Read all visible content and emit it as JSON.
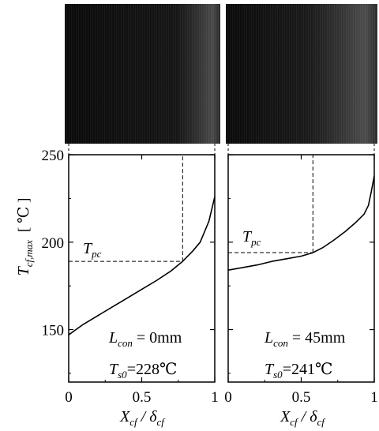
{
  "chart_data": [
    {
      "type": "line",
      "y_axis_symbol": "T",
      "y_axis_subscript": "cf,max",
      "y_axis_unit": "[ ℃ ]",
      "x_axis_symbol": "X",
      "x_axis_subscript": "cf",
      "x_axis_slash": " / δ",
      "x_axis_denominator_subscript": "cf",
      "xlim": [
        0,
        1
      ],
      "ylim": [
        120,
        250
      ],
      "x_ticks": [
        "0",
        "0.5",
        "1"
      ],
      "y_ticks": [
        "150",
        "200",
        "250"
      ],
      "series": [
        {
          "x": [
            0,
            0.05,
            0.1,
            0.2,
            0.3,
            0.4,
            0.5,
            0.6,
            0.7,
            0.78,
            0.85,
            0.9,
            0.93,
            0.96,
            0.98,
            1.0
          ],
          "y": [
            147,
            150,
            153,
            158,
            163,
            168,
            173,
            178,
            183.5,
            189,
            195,
            200,
            206,
            212,
            219,
            226
          ]
        }
      ],
      "marker_label_symbol": "T",
      "marker_label_subscript": "pc",
      "marker": {
        "x": 0.78,
        "y": 189
      },
      "annotations": [
        {
          "symbol": "L",
          "subscript": "con",
          "rest": " = 0mm"
        },
        {
          "symbol": "T",
          "subscript": "s0",
          "rest": "=228℃"
        }
      ]
    },
    {
      "type": "line",
      "x_axis_symbol": "X",
      "x_axis_subscript": "cf",
      "x_axis_slash": " / δ",
      "x_axis_denominator_subscript": "cf",
      "xlim": [
        0,
        1
      ],
      "ylim": [
        120,
        250
      ],
      "x_ticks": [
        "0",
        "0.5",
        "1"
      ],
      "series": [
        {
          "x": [
            0,
            0.1,
            0.2,
            0.3,
            0.4,
            0.5,
            0.58,
            0.65,
            0.72,
            0.8,
            0.87,
            0.93,
            0.96,
            0.98,
            1.0
          ],
          "y": [
            184,
            185.5,
            187,
            189,
            190.5,
            192,
            194,
            197,
            201,
            206,
            211,
            216,
            221,
            229,
            238
          ]
        }
      ],
      "marker_label_symbol": "T",
      "marker_label_subscript": "pc",
      "marker": {
        "x": 0.58,
        "y": 194
      },
      "annotations": [
        {
          "symbol": "L",
          "subscript": "con",
          "rest": " = 45mm"
        },
        {
          "symbol": "T",
          "subscript": "s0",
          "rest": "=241℃"
        }
      ]
    }
  ]
}
